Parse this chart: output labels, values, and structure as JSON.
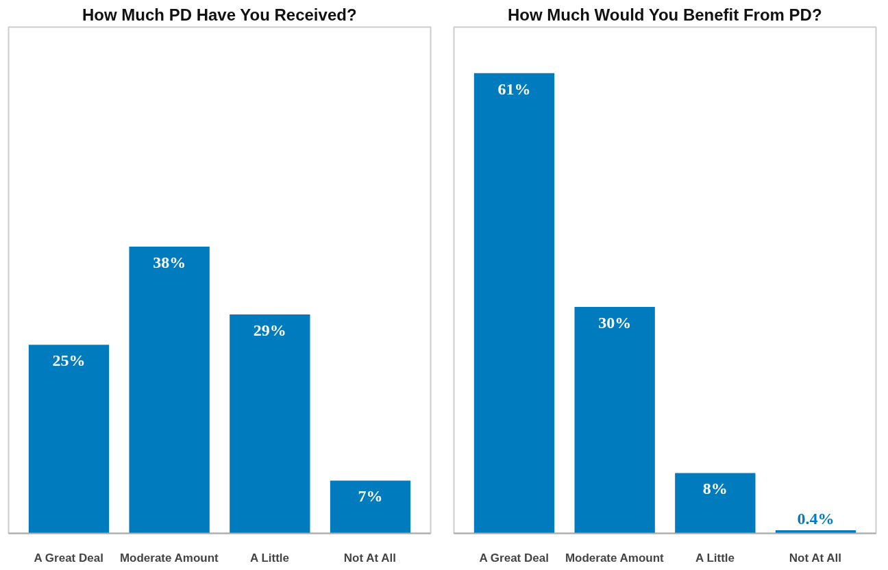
{
  "chart_data": [
    {
      "type": "bar",
      "title": "How Much PD Have You Received?",
      "categories": [
        "A Great Deal",
        "Moderate Amount",
        "A Little",
        "Not At All"
      ],
      "values": [
        25,
        38,
        29,
        7
      ],
      "value_labels": [
        "25%",
        "38%",
        "29%",
        "7%"
      ],
      "color": "#007bbd"
    },
    {
      "type": "bar",
      "title": "How Much Would You Benefit From PD?",
      "categories": [
        "A Great Deal",
        "Moderate Amount",
        "A Little",
        "Not At All"
      ],
      "values": [
        61,
        30,
        8,
        0.4
      ],
      "value_labels": [
        "61%",
        "30%",
        "8%",
        "0.4%"
      ],
      "color": "#007bbd"
    }
  ]
}
